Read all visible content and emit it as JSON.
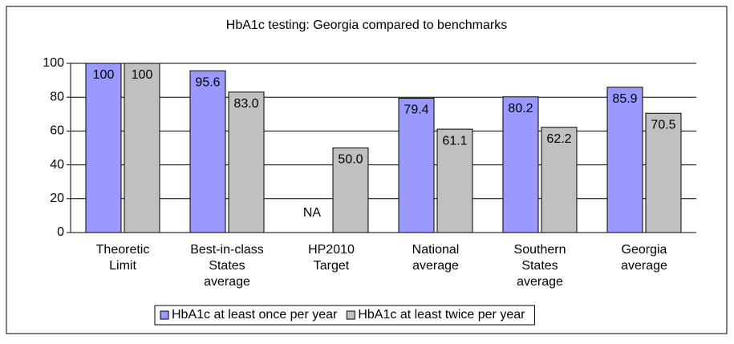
{
  "chart_data": {
    "type": "bar",
    "title": "HbA1c testing: Georgia compared to benchmarks",
    "categories": [
      [
        "Theoretic",
        "Limit"
      ],
      [
        "Best-in-class",
        "States",
        "average"
      ],
      [
        "HP2010",
        "Target"
      ],
      [
        "National",
        "average"
      ],
      [
        "Southern",
        "States",
        "average"
      ],
      [
        "Georgia",
        "average"
      ]
    ],
    "series": [
      {
        "name": "HbA1c at least once per year",
        "color": "#9999ff",
        "values": [
          100,
          95.6,
          null,
          79.4,
          80.2,
          85.9
        ],
        "value_labels": [
          "100",
          "95.6",
          "NA",
          "79.4",
          "80.2",
          "85.9"
        ]
      },
      {
        "name": "HbA1c at least twice per year",
        "color": "#c0c0c0",
        "values": [
          100,
          83.0,
          50.0,
          61.1,
          62.2,
          70.5
        ],
        "value_labels": [
          "100",
          "83.0",
          "50.0",
          "61.1",
          "62.2",
          "70.5"
        ]
      }
    ],
    "ylim": [
      0,
      100
    ],
    "yticks": [
      0,
      20,
      40,
      60,
      80,
      100
    ],
    "grid": true,
    "legend": "bottom"
  }
}
